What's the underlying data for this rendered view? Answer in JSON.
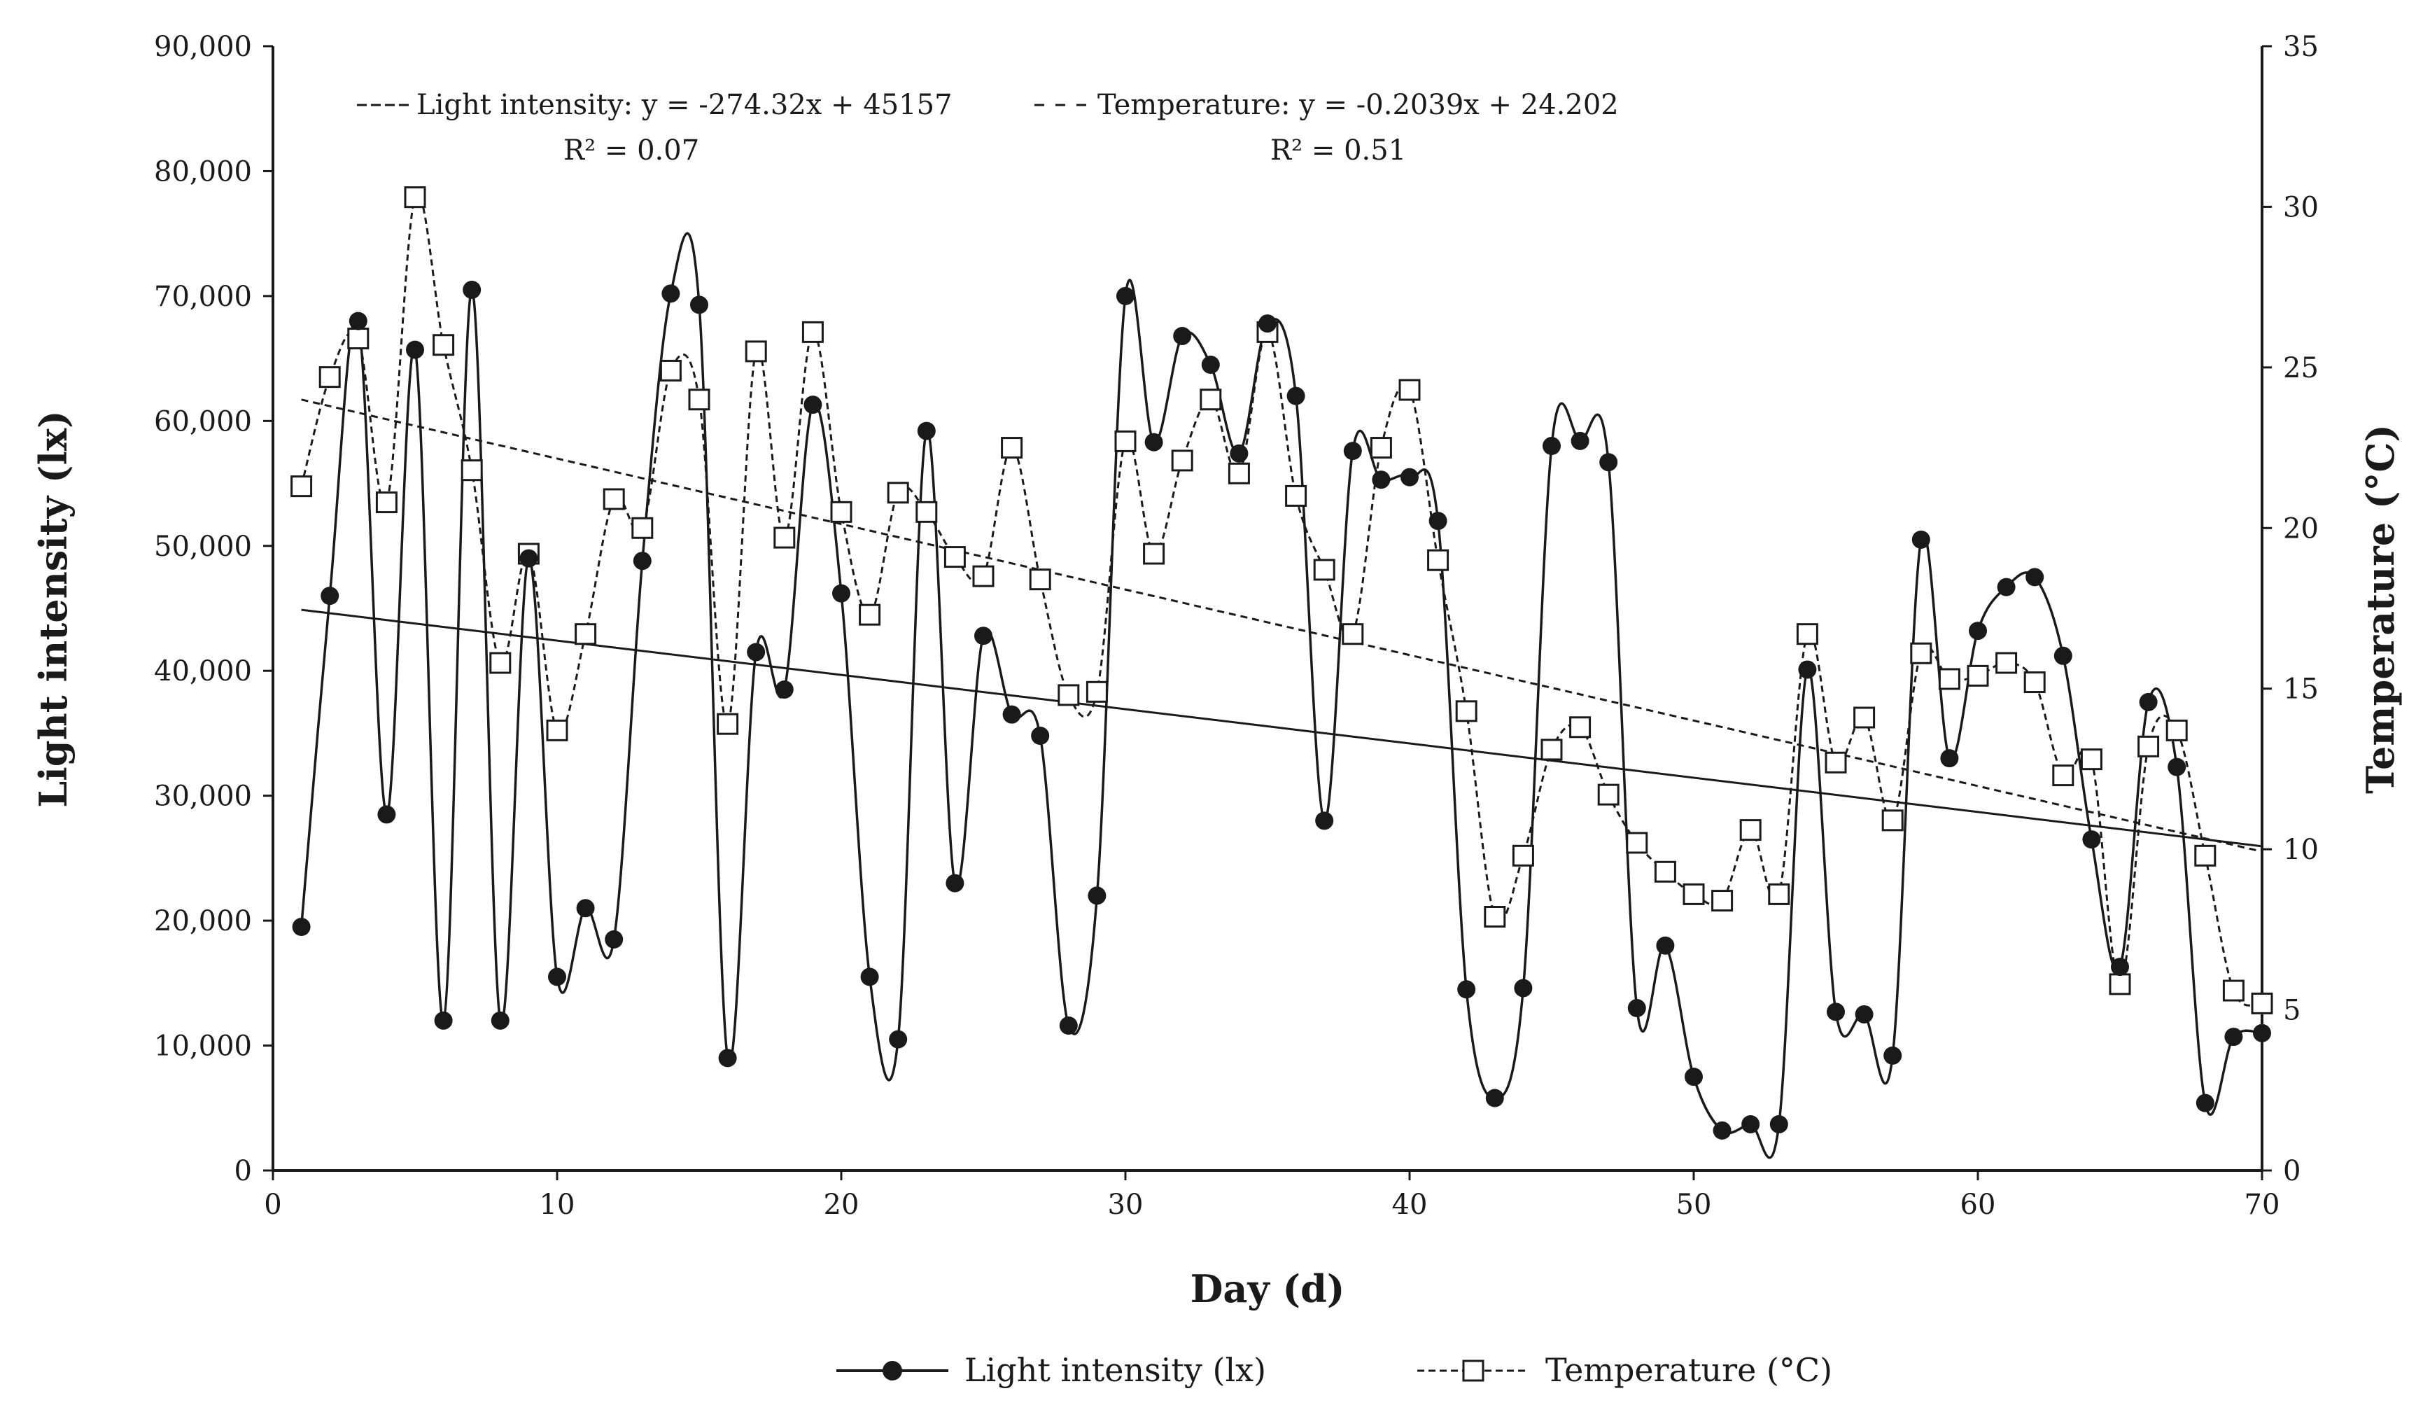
{
  "chart_data": {
    "type": "line",
    "title": "",
    "xlabel": "Day (d)",
    "ylabel_left": "Light intensity (lx)",
    "ylabel_right": "Temperature (°C)",
    "xlim": [
      0,
      70
    ],
    "ylim_left": [
      0,
      90000
    ],
    "ylim_right": [
      0,
      35
    ],
    "x_ticks": [
      0,
      10,
      20,
      30,
      40,
      50,
      60,
      70
    ],
    "x_tick_labels": [
      "0",
      "10",
      "20",
      "30",
      "40",
      "50",
      "60",
      "70"
    ],
    "y_left_ticks": [
      0,
      10000,
      20000,
      30000,
      40000,
      50000,
      60000,
      70000,
      80000,
      90000
    ],
    "y_left_tick_labels": [
      "0",
      "10,000",
      "20,000",
      "30,000",
      "40,000",
      "50,000",
      "60,000",
      "70,000",
      "80,000",
      "90,000"
    ],
    "y_right_ticks": [
      0,
      5,
      10,
      15,
      20,
      25,
      30,
      35
    ],
    "y_right_tick_labels": [
      "0",
      "5",
      "10",
      "15",
      "20",
      "25",
      "30",
      "35"
    ],
    "grid": false,
    "legend_position": "bottom",
    "series": [
      {
        "name": "Light intensity (lx)",
        "axis": "left",
        "marker": "filled-circle",
        "line_style": "solid",
        "x": [
          1,
          2,
          3,
          4,
          5,
          6,
          7,
          8,
          9,
          10,
          11,
          12,
          13,
          14,
          15,
          16,
          17,
          18,
          19,
          20,
          21,
          22,
          23,
          24,
          25,
          26,
          27,
          28,
          29,
          30,
          31,
          32,
          33,
          34,
          35,
          36,
          37,
          38,
          39,
          40,
          41,
          42,
          43,
          44,
          45,
          46,
          47,
          48,
          49,
          50,
          51,
          52,
          53,
          54,
          55,
          56,
          57,
          58,
          59,
          60,
          61,
          62,
          63,
          64,
          65,
          66,
          67,
          68,
          69,
          70
        ],
        "values": [
          19500,
          46000,
          68000,
          28500,
          65700,
          12000,
          70500,
          12000,
          49000,
          15500,
          21000,
          18500,
          48800,
          70200,
          69300,
          9000,
          41500,
          38500,
          61300,
          46200,
          15500,
          10500,
          59200,
          23000,
          42800,
          36500,
          34800,
          11600,
          22000,
          70000,
          58300,
          66800,
          64500,
          57400,
          67800,
          62000,
          28000,
          57600,
          55300,
          55500,
          52000,
          14500,
          5800,
          14600,
          58000,
          58400,
          56700,
          13000,
          18000,
          7500,
          3200,
          3700,
          3700,
          40100,
          12700,
          12500,
          9200,
          50500,
          33000,
          43200,
          46700,
          47500,
          41200,
          26500,
          16300,
          37500,
          32300,
          5400,
          10700,
          11000
        ]
      },
      {
        "name": "Temperature (°C)",
        "axis": "right",
        "marker": "open-square",
        "line_style": "dashed",
        "x": [
          1,
          2,
          3,
          4,
          5,
          6,
          7,
          8,
          9,
          10,
          11,
          12,
          13,
          14,
          15,
          16,
          17,
          18,
          19,
          20,
          21,
          22,
          23,
          24,
          25,
          26,
          27,
          28,
          29,
          30,
          31,
          32,
          33,
          34,
          35,
          36,
          37,
          38,
          39,
          40,
          41,
          42,
          43,
          44,
          45,
          46,
          47,
          48,
          49,
          50,
          51,
          52,
          53,
          54,
          55,
          56,
          57,
          58,
          59,
          60,
          61,
          62,
          63,
          64,
          65,
          66,
          67,
          68,
          69,
          70
        ],
        "values": [
          21.3,
          24.7,
          25.9,
          20.8,
          30.3,
          25.7,
          21.8,
          15.8,
          19.2,
          13.7,
          16.7,
          20.9,
          20.0,
          24.9,
          24.0,
          13.9,
          25.5,
          19.7,
          26.1,
          20.5,
          17.3,
          21.1,
          20.5,
          19.1,
          18.5,
          22.5,
          18.4,
          14.8,
          14.9,
          22.7,
          19.2,
          22.1,
          24.0,
          21.7,
          26.1,
          21.0,
          18.7,
          16.7,
          22.5,
          24.3,
          19.0,
          14.3,
          7.9,
          9.8,
          13.1,
          13.8,
          11.7,
          10.2,
          9.3,
          8.6,
          8.4,
          10.6,
          8.6,
          16.7,
          12.7,
          14.1,
          10.9,
          16.1,
          15.3,
          15.4,
          15.8,
          15.2,
          12.3,
          12.8,
          5.8,
          13.2,
          13.7,
          9.8,
          5.6,
          5.2
        ]
      }
    ],
    "trendlines": [
      {
        "name": "Light intensity trendline",
        "axis": "left",
        "line_style": "solid",
        "slope": -274.32,
        "intercept": 45157,
        "x_range": [
          1,
          70
        ]
      },
      {
        "name": "Temperature trendline",
        "axis": "right",
        "line_style": "dashed",
        "slope": -0.2039,
        "intercept": 24.202,
        "x_range": [
          1,
          70
        ]
      }
    ],
    "annotations": [
      {
        "text": "Light intensity:  y = -274.32x + 45157",
        "r2": "R² = 0.07"
      },
      {
        "text": "Temperature: y = -0.2039x + 24.202",
        "r2": "R² = 0.51"
      }
    ]
  }
}
